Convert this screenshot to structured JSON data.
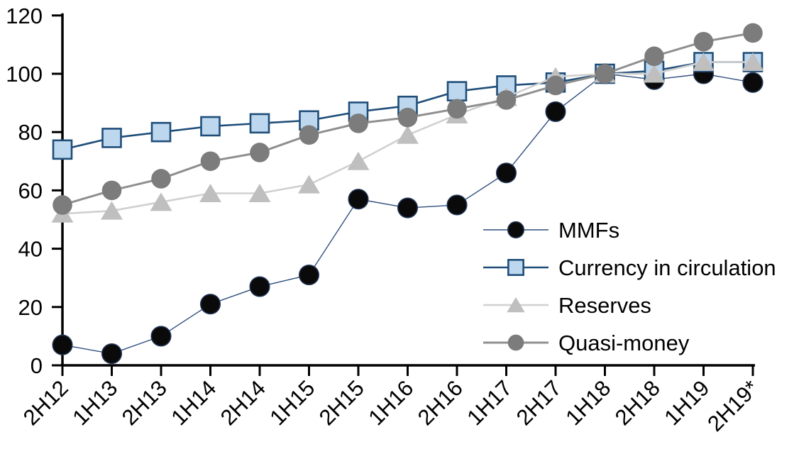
{
  "chart_data": {
    "type": "line",
    "title": "",
    "xlabel": "",
    "ylabel": "",
    "ylim": [
      0,
      120
    ],
    "yticks": [
      0,
      20,
      40,
      60,
      80,
      100,
      120
    ],
    "grid": false,
    "legend_position": "center-right",
    "categories": [
      "2H12",
      "1H13",
      "2H13",
      "1H14",
      "2H14",
      "1H15",
      "2H15",
      "1H16",
      "2H16",
      "1H17",
      "2H17",
      "1H18",
      "2H18",
      "1H19",
      "2H19*"
    ],
    "series": [
      {
        "name": "MMFs",
        "marker": "circle",
        "line_color": "#2F4F7D",
        "line_width": 1.4,
        "marker_fill": "#0a0a0a",
        "marker_stroke": "#24385B",
        "values": [
          7,
          4,
          10,
          21,
          27,
          31,
          57,
          54,
          55,
          66,
          87,
          100,
          98,
          100,
          97
        ]
      },
      {
        "name": "Currency in circulation",
        "marker": "square",
        "line_color": "#1F4E79",
        "line_width": 2.6,
        "marker_fill": "#BDD7EE",
        "marker_stroke": "#1F4E79",
        "values": [
          74,
          78,
          80,
          82,
          83,
          84,
          87,
          89,
          94,
          96,
          97,
          100,
          101,
          104,
          104
        ]
      },
      {
        "name": "Reserves",
        "marker": "triangle",
        "line_color": "#D0D0D0",
        "line_width": 2.6,
        "marker_fill": "#BFBFBF",
        "marker_stroke": "none",
        "values": [
          52,
          53,
          56,
          59,
          59,
          62,
          70,
          79,
          86,
          92,
          99,
          100,
          100,
          104,
          104
        ]
      },
      {
        "name": "Quasi-money",
        "marker": "circle",
        "line_color": "#8F8F8F",
        "line_width": 3,
        "marker_fill": "#7C7C7C",
        "marker_stroke": "none",
        "values": [
          55,
          60,
          64,
          70,
          73,
          79,
          83,
          85,
          88,
          91,
          96,
          100,
          106,
          111,
          114
        ]
      }
    ],
    "axis_color": "#000000",
    "text_color": "#000000"
  }
}
